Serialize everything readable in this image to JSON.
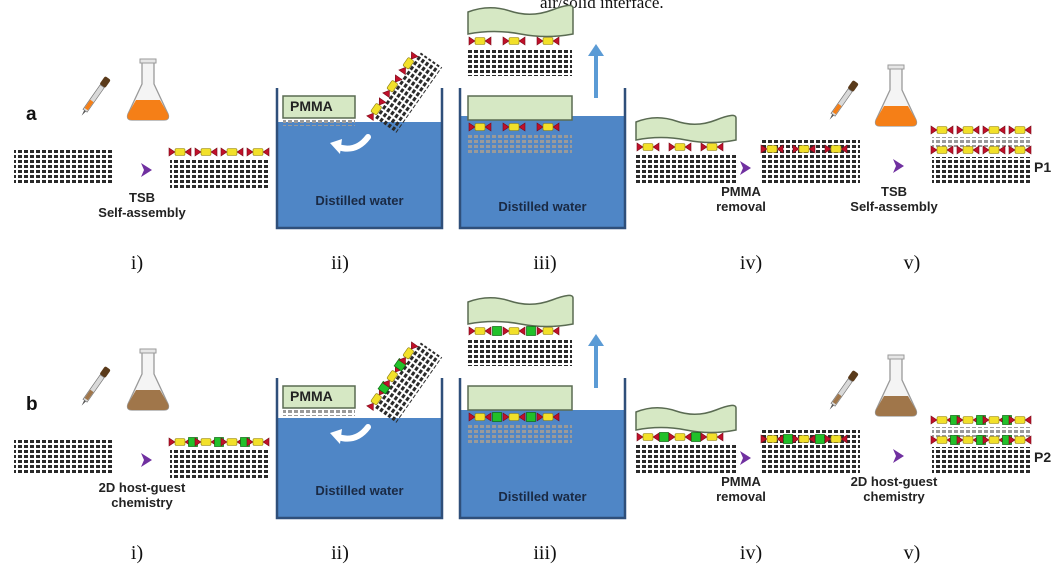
{
  "header_text": "air/solid interface.",
  "rows": [
    {
      "letter": "a",
      "labels": {
        "i": [
          "TSB",
          "Self-assembly"
        ],
        "ii_box": "PMMA",
        "ii_water": "Distilled water",
        "iii_water": "Distilled water",
        "iv": [
          "PMMA",
          "removal"
        ],
        "v": [
          "TSB",
          "Self-assembly"
        ],
        "product": "P1"
      },
      "liquid_color": "#f57f17",
      "guest": "none",
      "steps": [
        "i)",
        "ii)",
        "iii)",
        "iv)",
        "v)"
      ]
    },
    {
      "letter": "b",
      "labels": {
        "i": [
          "2D host-guest",
          "chemistry"
        ],
        "ii_box": "PMMA",
        "ii_water": "Distilled water",
        "iii_water": "Distilled water",
        "iv": [
          "PMMA",
          "removal"
        ],
        "v": [
          "2D host-guest",
          "chemistry"
        ],
        "product": "P2"
      },
      "liquid_color": "#a0764a",
      "guest": "green-square",
      "steps": [
        "i)",
        "ii)",
        "iii)",
        "iv)",
        "v)"
      ]
    }
  ],
  "colors": {
    "water": "#4f86c6",
    "water_light": "#7aa7d9",
    "pmma": "#d6e8c4",
    "pmma_border": "#5a6b52",
    "arrow": "#7030a0",
    "lift_arrow": "#5b9bd5",
    "tsb_red": "#c0102a",
    "tsb_yellow": "#f2e02a",
    "guest_green": "#22c02a",
    "lattice": "#2a2a2a"
  }
}
